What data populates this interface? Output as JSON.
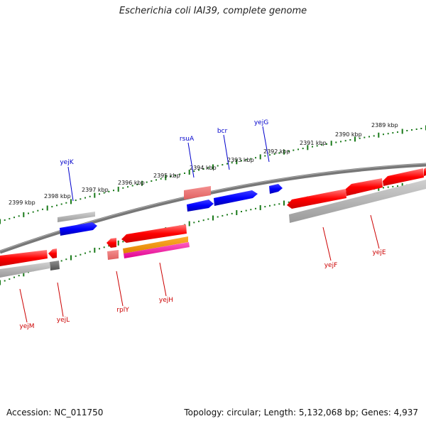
{
  "title": "Escherichia coli IAI39, complete genome",
  "footer": {
    "accession": "Accession: NC_011750",
    "summary": "Topology: circular; Length: 5,132,068 bp; Genes: 4,937"
  },
  "colors": {
    "plus_label": "#0000cc",
    "minus_label": "#cc0000",
    "tick": "#1a7a1a",
    "backbone": "#808080"
  },
  "kbp_labels": [
    "2399 kbp",
    "2398 kbp",
    "2397 kbp",
    "2396 kbp",
    "2395 kbp",
    "2394 kbp",
    "2393 kbp",
    "2392 kbp",
    "2391 kbp",
    "2390 kbp",
    "2389 kbp"
  ],
  "genes": {
    "plus": [
      "yejK",
      "rsuA",
      "bcr",
      "yejG"
    ],
    "minus": [
      "yejM",
      "yejL",
      "rplY",
      "yejH",
      "yejF",
      "yejE"
    ]
  }
}
